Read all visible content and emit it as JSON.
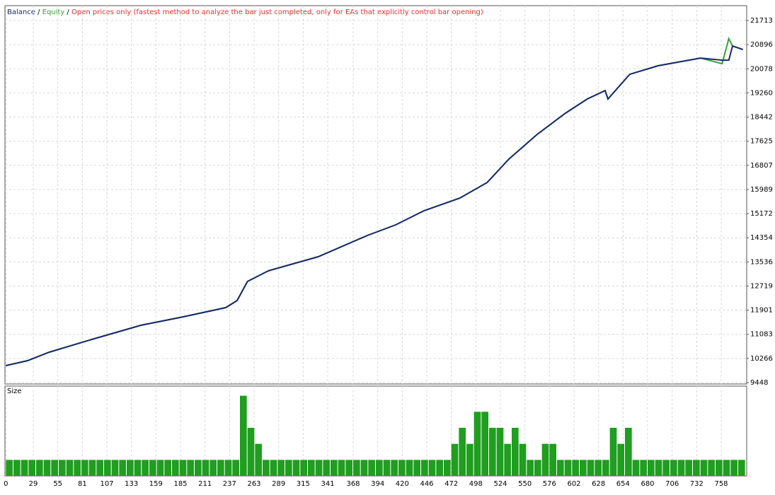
{
  "chart_data": [
    {
      "type": "line",
      "legend": [
        "Balance",
        "Equity"
      ],
      "separator": " / ",
      "annotation": "Open prices only (fastest method to analyze the bar just completed, only for EAs that explicitly control bar opening)",
      "x": [
        0,
        23,
        46,
        91,
        143,
        188,
        233,
        245,
        256,
        278,
        331,
        383,
        413,
        443,
        481,
        510,
        533,
        563,
        593,
        616,
        635,
        638,
        661,
        691,
        736,
        759,
        766,
        770,
        781
      ],
      "series": [
        {
          "name": "Balance",
          "color": "#1a2a6c",
          "values": [
            10023,
            10190,
            10478,
            10909,
            11388,
            11675,
            11987,
            12226,
            12873,
            13232,
            13711,
            14430,
            14789,
            15268,
            15699,
            16226,
            17017,
            17855,
            18574,
            19053,
            19340,
            19053,
            19891,
            20179,
            20442,
            20370,
            20370,
            20849,
            20729
          ]
        },
        {
          "name": "Equity",
          "color": "#3aa03a",
          "values": [
            10023,
            10190,
            10478,
            10909,
            11388,
            11675,
            11987,
            12226,
            12873,
            13232,
            13711,
            14430,
            14789,
            15268,
            15699,
            16226,
            17017,
            17855,
            18574,
            19053,
            19340,
            19053,
            19891,
            20179,
            20442,
            20250,
            21100,
            20849,
            20729
          ]
        }
      ],
      "xlim": [
        -1,
        785
      ],
      "ylim": [
        9400,
        22216
      ],
      "xticks": [
        0,
        29,
        55,
        81,
        107,
        133,
        159,
        185,
        211,
        237,
        263,
        289,
        315,
        341,
        368,
        394,
        420,
        446,
        472,
        498,
        524,
        550,
        576,
        602,
        628,
        654,
        680,
        706,
        732,
        758
      ],
      "yticks": [
        9448,
        10266,
        11083,
        11901,
        12719,
        13536,
        14354,
        15172,
        15989,
        16807,
        17625,
        18442,
        19260,
        20078,
        20896,
        21713
      ],
      "grid": true
    },
    {
      "type": "bar",
      "title": "Size",
      "color": "#1f9e1f",
      "x": [
        0,
        8,
        16,
        24,
        32,
        40,
        48,
        56,
        64,
        72,
        80,
        88,
        96,
        104,
        112,
        120,
        128,
        136,
        144,
        152,
        160,
        168,
        176,
        184,
        192,
        200,
        208,
        216,
        224,
        232,
        240,
        248,
        256,
        264,
        272,
        280,
        288,
        296,
        304,
        312,
        320,
        328,
        336,
        344,
        352,
        360,
        368,
        376,
        384,
        392,
        400,
        408,
        416,
        424,
        432,
        440,
        448,
        456,
        464,
        472,
        480,
        488,
        496,
        504,
        512,
        520,
        528,
        536,
        544,
        552,
        560,
        568,
        576,
        584,
        592,
        600,
        608,
        616,
        624,
        632,
        640,
        648,
        656,
        664,
        672,
        680,
        688,
        696,
        704,
        712,
        720,
        728,
        736,
        744,
        752,
        760,
        768,
        776
      ],
      "values": [
        1,
        1,
        1,
        1,
        1,
        1,
        1,
        1,
        1,
        1,
        1,
        1,
        1,
        1,
        1,
        1,
        1,
        1,
        1,
        1,
        1,
        1,
        1,
        1,
        1,
        1,
        1,
        1,
        1,
        1,
        1,
        5,
        3,
        2,
        1,
        1,
        1,
        1,
        1,
        1,
        1,
        1,
        1,
        1,
        1,
        1,
        1,
        1,
        1,
        1,
        1,
        1,
        1,
        1,
        1,
        1,
        1,
        1,
        1,
        2,
        3,
        2,
        4,
        4,
        3,
        3,
        2,
        3,
        2,
        1,
        1,
        2,
        2,
        1,
        1,
        1,
        1,
        1,
        1,
        1,
        3,
        2,
        3,
        1,
        1,
        1,
        1,
        1,
        1,
        1,
        1,
        1,
        1,
        1,
        1,
        1,
        1,
        1
      ],
      "xlim": [
        -1,
        785
      ],
      "ylim": [
        0,
        5.6
      ]
    }
  ]
}
